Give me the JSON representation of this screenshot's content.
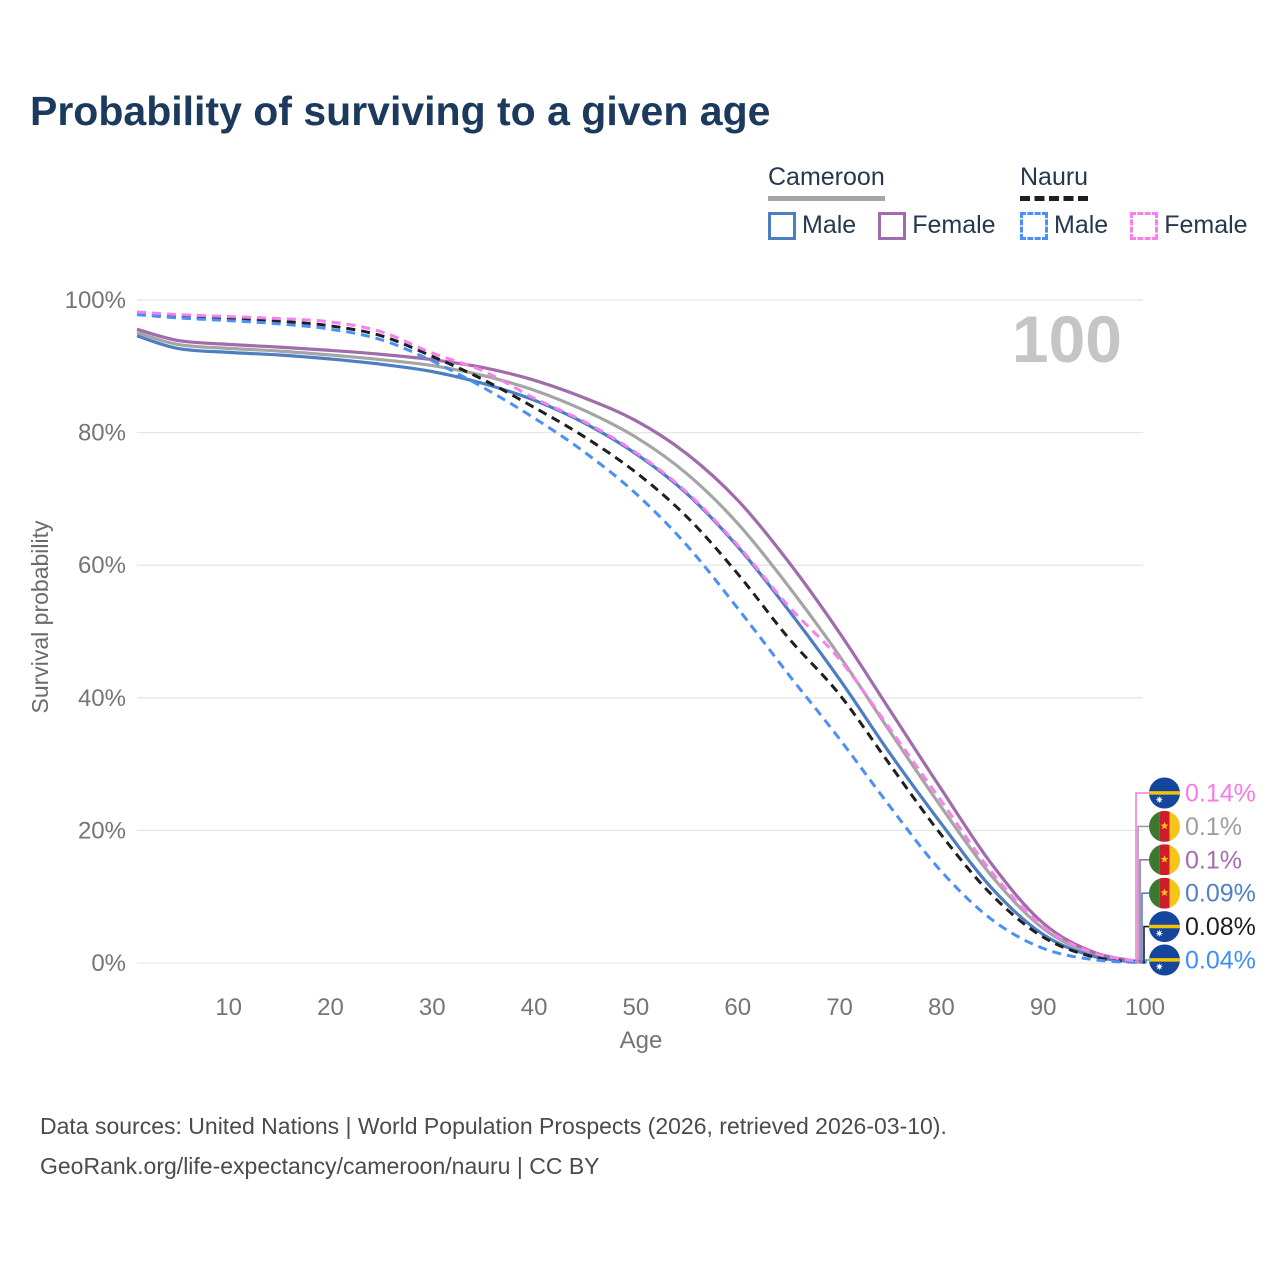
{
  "header": {
    "title": "Probability of surviving to a given age"
  },
  "legend": {
    "groups": [
      {
        "country": "Cameroon",
        "style": "solid",
        "items": [
          {
            "label": "Male",
            "color": "#4d7ec2",
            "dashed": false
          },
          {
            "label": "Female",
            "color": "#a06cab",
            "dashed": false
          }
        ]
      },
      {
        "country": "Nauru",
        "style": "dashed",
        "items": [
          {
            "label": "Male",
            "color": "#4a90f5",
            "dashed": true
          },
          {
            "label": "Female",
            "color": "#f780ec",
            "dashed": true
          }
        ]
      }
    ]
  },
  "chart_data": {
    "type": "line",
    "title": "Probability of surviving to a given age",
    "xlabel": "Age",
    "ylabel": "Survival probability",
    "watermark": "100",
    "xlim": [
      1,
      100
    ],
    "ylim": [
      0,
      100
    ],
    "grid": "horizontal",
    "x_ticks": [
      {
        "label": "10",
        "value": 10
      },
      {
        "label": "20",
        "value": 20
      },
      {
        "label": "30",
        "value": 30
      },
      {
        "label": "40",
        "value": 40
      },
      {
        "label": "50",
        "value": 50
      },
      {
        "label": "60",
        "value": 60
      },
      {
        "label": "70",
        "value": 70
      },
      {
        "label": "80",
        "value": 80
      },
      {
        "label": "90",
        "value": 90
      },
      {
        "label": "100",
        "value": 100
      }
    ],
    "y_ticks": [
      {
        "label": "100%",
        "value": 100
      },
      {
        "label": "80%",
        "value": 80
      },
      {
        "label": "60%",
        "value": 60
      },
      {
        "label": "40%",
        "value": 40
      },
      {
        "label": "20%",
        "value": 20
      },
      {
        "label": "0%",
        "value": 0
      }
    ],
    "x": [
      1,
      5,
      10,
      15,
      20,
      25,
      30,
      35,
      40,
      45,
      50,
      55,
      60,
      65,
      70,
      75,
      80,
      85,
      90,
      95,
      100
    ],
    "series": [
      {
        "key": "cameroon_avg",
        "name": "Cameroon Average",
        "country": "Cameroon",
        "sex": "Both",
        "color": "#a5a5a5",
        "dashed": false,
        "values": [
          95.1,
          93.3,
          92.7,
          92.3,
          91.7,
          91.0,
          90.1,
          88.6,
          86.4,
          83.3,
          79.3,
          73.8,
          66.3,
          56.8,
          46.3,
          34.8,
          23.5,
          13.0,
          5.2,
          1.3,
          0.1
        ]
      },
      {
        "key": "cameroon_male",
        "name": "Cameroon Male",
        "country": "Cameroon",
        "sex": "Male",
        "color": "#4d7ec2",
        "dashed": false,
        "values": [
          94.6,
          92.7,
          92.1,
          91.7,
          91.1,
          90.3,
          89.2,
          87.4,
          84.9,
          81.4,
          76.8,
          70.8,
          62.8,
          53.2,
          42.8,
          31.5,
          21.0,
          11.2,
          4.3,
          1.0,
          0.09
        ]
      },
      {
        "key": "cameroon_female",
        "name": "Cameroon Female",
        "country": "Cameroon",
        "sex": "Female",
        "color": "#a06cab",
        "dashed": false,
        "values": [
          95.6,
          93.9,
          93.3,
          92.9,
          92.4,
          91.8,
          91.0,
          89.8,
          87.9,
          85.2,
          81.8,
          76.8,
          69.8,
          60.5,
          49.8,
          38.0,
          26.2,
          14.8,
          6.0,
          1.6,
          0.1
        ]
      },
      {
        "key": "nauru_avg",
        "name": "Nauru Average",
        "country": "Nauru",
        "sex": "Both",
        "color": "#1f1f1f",
        "dashed": true,
        "values": [
          98.0,
          97.5,
          97.2,
          96.8,
          96.1,
          94.6,
          91.5,
          88.0,
          83.8,
          79.3,
          74.0,
          67.3,
          58.7,
          49.0,
          40.5,
          29.8,
          19.3,
          10.2,
          3.9,
          0.9,
          0.08
        ]
      },
      {
        "key": "nauru_male",
        "name": "Nauru Male",
        "country": "Nauru",
        "sex": "Male",
        "color": "#4a90f5",
        "dashed": true,
        "values": [
          97.8,
          97.3,
          96.9,
          96.4,
          95.6,
          94.0,
          90.8,
          86.8,
          82.2,
          77.0,
          70.8,
          63.0,
          53.5,
          43.5,
          33.8,
          23.5,
          13.8,
          6.5,
          2.2,
          0.5,
          0.04
        ]
      },
      {
        "key": "nauru_female",
        "name": "Nauru Female",
        "country": "Nauru",
        "sex": "Female",
        "color": "#f780ec",
        "dashed": true,
        "values": [
          98.2,
          97.8,
          97.5,
          97.2,
          96.7,
          95.2,
          92.0,
          89.3,
          85.2,
          81.6,
          77.0,
          71.0,
          63.0,
          53.8,
          45.8,
          35.2,
          24.4,
          13.6,
          5.5,
          1.5,
          0.14
        ]
      }
    ],
    "end_labels": [
      {
        "text": "0.14%",
        "series": "nauru_female",
        "flag": "nauru",
        "color": "#f77ae8"
      },
      {
        "text": "0.1%",
        "series": "cameroon_avg",
        "flag": "cameroon",
        "color": "#9e9e9e"
      },
      {
        "text": "0.1%",
        "series": "cameroon_female",
        "flag": "cameroon",
        "color": "#a56cae"
      },
      {
        "text": "0.09%",
        "series": "cameroon_male",
        "flag": "cameroon",
        "color": "#5181c4"
      },
      {
        "text": "0.08%",
        "series": "nauru_avg",
        "flag": "nauru",
        "color": "#1f1f1f"
      },
      {
        "text": "0.04%",
        "series": "nauru_male",
        "flag": "nauru",
        "color": "#3f8ef5"
      }
    ],
    "legend_position": "top-right"
  },
  "footer": {
    "line1": "Data sources: United Nations | World Population Prospects (2026, retrieved 2026-03-10).",
    "line2": "GeoRank.org/life-expectancy/cameroon/nauru | CC BY"
  },
  "colors": {
    "title": "#1b3a5e",
    "axis_text": "#757575",
    "gridline": "#e7e7e7",
    "watermark": "#c5c5c5",
    "footer_text": "#4b4b4b",
    "cameroon_underline": "#a5a5a5",
    "nauru_underline": "#1f1f1f"
  }
}
